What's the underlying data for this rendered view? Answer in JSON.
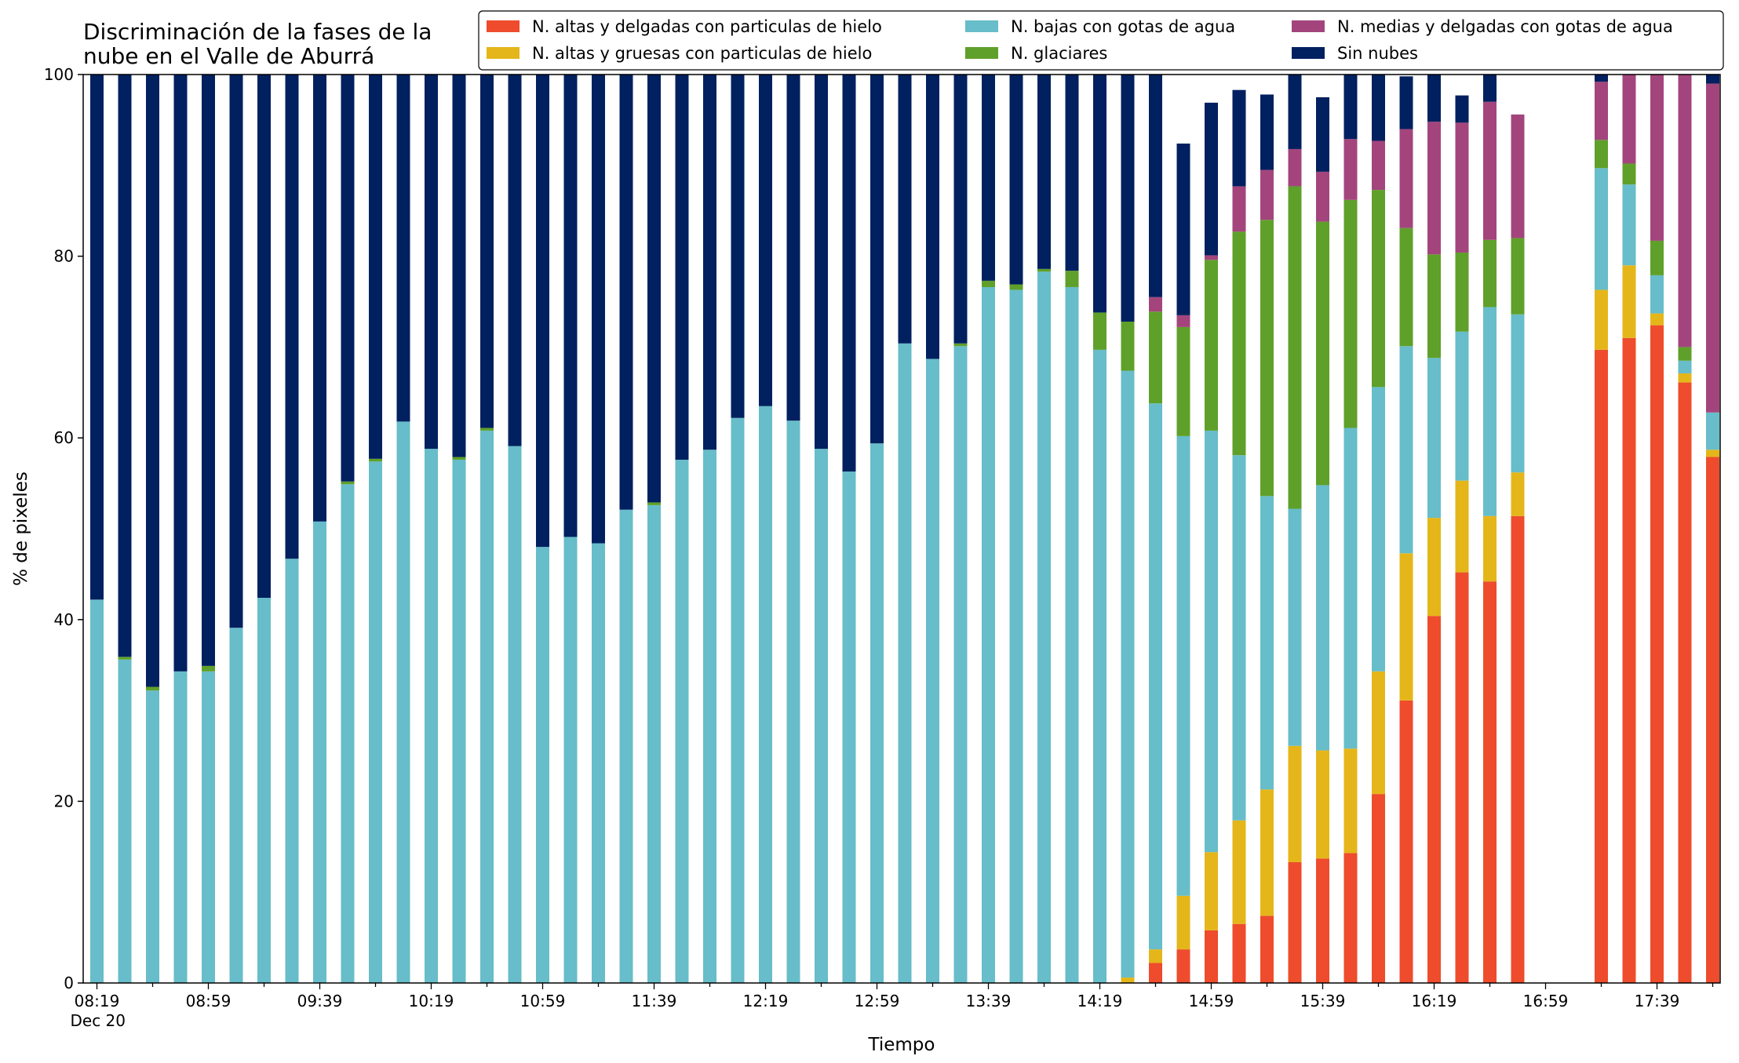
{
  "chart_data": {
    "type": "bar",
    "stacked": true,
    "title": "Discriminación de la fases de la\nnube en el Valle de Aburrá",
    "xlabel": "Tiempo",
    "ylabel": "% de pixeles",
    "ylim": [
      0,
      100
    ],
    "yticks": [
      0,
      20,
      40,
      60,
      80,
      100
    ],
    "grid": false,
    "legend_position": "top-right",
    "x_ticks": [
      {
        "label": "08:19",
        "sub": "Dec 20",
        "index": 0
      },
      {
        "label": "08:59",
        "index": 4
      },
      {
        "label": "09:39",
        "index": 8
      },
      {
        "label": "10:19",
        "index": 12
      },
      {
        "label": "10:59",
        "index": 16
      },
      {
        "label": "11:39",
        "index": 20
      },
      {
        "label": "12:19",
        "index": 24
      },
      {
        "label": "12:59",
        "index": 28
      },
      {
        "label": "13:39",
        "index": 32
      },
      {
        "label": "14:19",
        "index": 36
      },
      {
        "label": "14:59",
        "index": 40
      },
      {
        "label": "15:39",
        "index": 44
      },
      {
        "label": "16:19",
        "index": 48
      },
      {
        "label": "16:59",
        "index": 52
      },
      {
        "label": "17:39",
        "index": 56
      }
    ],
    "slot_count": 59,
    "series": [
      {
        "name": "N. altas y delgadas con particulas de hielo",
        "color": "#EE4C2C",
        "values": [
          0,
          0,
          0,
          0,
          0,
          0,
          0,
          0,
          0,
          0,
          0,
          0,
          0,
          0,
          0,
          0,
          0,
          0,
          0,
          0,
          0,
          0,
          0,
          0,
          0,
          0,
          0,
          0,
          0,
          0,
          0,
          0,
          0,
          0,
          0,
          0,
          0,
          0,
          2.2,
          3.7,
          5.8,
          6.5,
          7.4,
          13.3,
          13.7,
          14.3,
          20.8,
          31.1,
          40.4,
          45.2,
          44.2,
          51.4,
          null,
          null,
          69.7,
          71.0,
          72.4,
          66.1,
          57.9
        ]
      },
      {
        "name": "N. altas y gruesas con particulas de hielo",
        "color": "#E5B61A",
        "values": [
          0,
          0,
          0,
          0,
          0,
          0,
          0,
          0,
          0,
          0,
          0,
          0,
          0,
          0,
          0,
          0,
          0,
          0,
          0,
          0,
          0,
          0,
          0,
          0,
          0,
          0,
          0,
          0,
          0,
          0,
          0,
          0,
          0,
          0,
          0,
          0,
          0,
          0.6,
          1.5,
          5.9,
          8.6,
          11.4,
          13.9,
          12.8,
          11.9,
          11.5,
          13.5,
          16.2,
          10.8,
          10.1,
          7.2,
          4.8,
          null,
          null,
          6.6,
          8.0,
          1.3,
          1.0,
          0.8
        ]
      },
      {
        "name": "N. bajas con gotas de agua",
        "color": "#67BDC9",
        "values": [
          42.2,
          35.6,
          32.2,
          34.3,
          34.3,
          39.1,
          42.4,
          46.7,
          50.8,
          54.9,
          57.4,
          61.8,
          58.8,
          57.6,
          60.8,
          59.1,
          48.0,
          49.1,
          48.4,
          52.1,
          52.6,
          57.6,
          58.7,
          62.2,
          63.5,
          61.9,
          58.8,
          56.3,
          59.4,
          70.4,
          68.7,
          70.1,
          76.6,
          76.3,
          78.3,
          76.6,
          69.7,
          66.8,
          60.1,
          50.6,
          46.4,
          40.2,
          32.3,
          26.1,
          29.2,
          35.3,
          31.3,
          22.8,
          17.6,
          16.4,
          23.0,
          17.4,
          null,
          null,
          13.4,
          8.9,
          4.2,
          1.4,
          4.1
        ]
      },
      {
        "name": "N. glaciares",
        "color": "#5FA02A",
        "values": [
          0,
          0.3,
          0.4,
          0,
          0.6,
          0,
          0,
          0,
          0,
          0.3,
          0.3,
          0,
          0,
          0.3,
          0.3,
          0,
          0,
          0,
          0,
          0,
          0.3,
          0,
          0,
          0,
          0,
          0,
          0,
          0,
          0,
          0,
          0,
          0.3,
          0.7,
          0.6,
          0.3,
          1.8,
          4.1,
          5.4,
          10.1,
          12.0,
          18.8,
          24.6,
          30.4,
          35.5,
          29.0,
          25.1,
          21.7,
          13.0,
          11.4,
          8.7,
          7.4,
          8.4,
          null,
          null,
          3.1,
          2.3,
          3.8,
          1.5,
          0
        ]
      },
      {
        "name": "N. medias y delgadas con gotas de agua",
        "color": "#A3457C",
        "values": [
          0,
          0,
          0,
          0,
          0,
          0,
          0,
          0,
          0,
          0,
          0,
          0,
          0,
          0,
          0,
          0,
          0,
          0,
          0,
          0,
          0,
          0,
          0,
          0,
          0,
          0,
          0,
          0,
          0,
          0,
          0,
          0,
          0,
          0,
          0,
          0,
          0,
          0,
          1.6,
          1.3,
          0.5,
          5.0,
          5.5,
          4.1,
          5.5,
          6.7,
          5.4,
          10.9,
          14.6,
          14.3,
          15.2,
          13.6,
          null,
          null,
          6.4,
          9.8,
          18.3,
          30.0,
          36.2
        ]
      },
      {
        "name": "Sin nubes",
        "color": "#002060",
        "values": [
          57.8,
          64.1,
          67.4,
          65.7,
          65.1,
          60.9,
          57.6,
          53.3,
          49.2,
          44.8,
          42.3,
          38.2,
          41.2,
          42.1,
          38.9,
          40.9,
          52.0,
          50.9,
          51.6,
          47.9,
          47.1,
          42.4,
          41.3,
          37.8,
          36.5,
          38.1,
          41.2,
          43.7,
          40.6,
          29.6,
          31.3,
          29.6,
          22.7,
          23.1,
          21.4,
          21.6,
          26.2,
          27.2,
          26.1,
          18.9,
          16.8,
          10.6,
          8.3,
          9.3,
          8.2,
          7.2,
          8.5,
          5.8,
          5.2,
          3.0,
          4.0,
          0,
          null,
          null,
          0.8,
          0,
          0,
          0,
          1.0
        ]
      }
    ]
  }
}
